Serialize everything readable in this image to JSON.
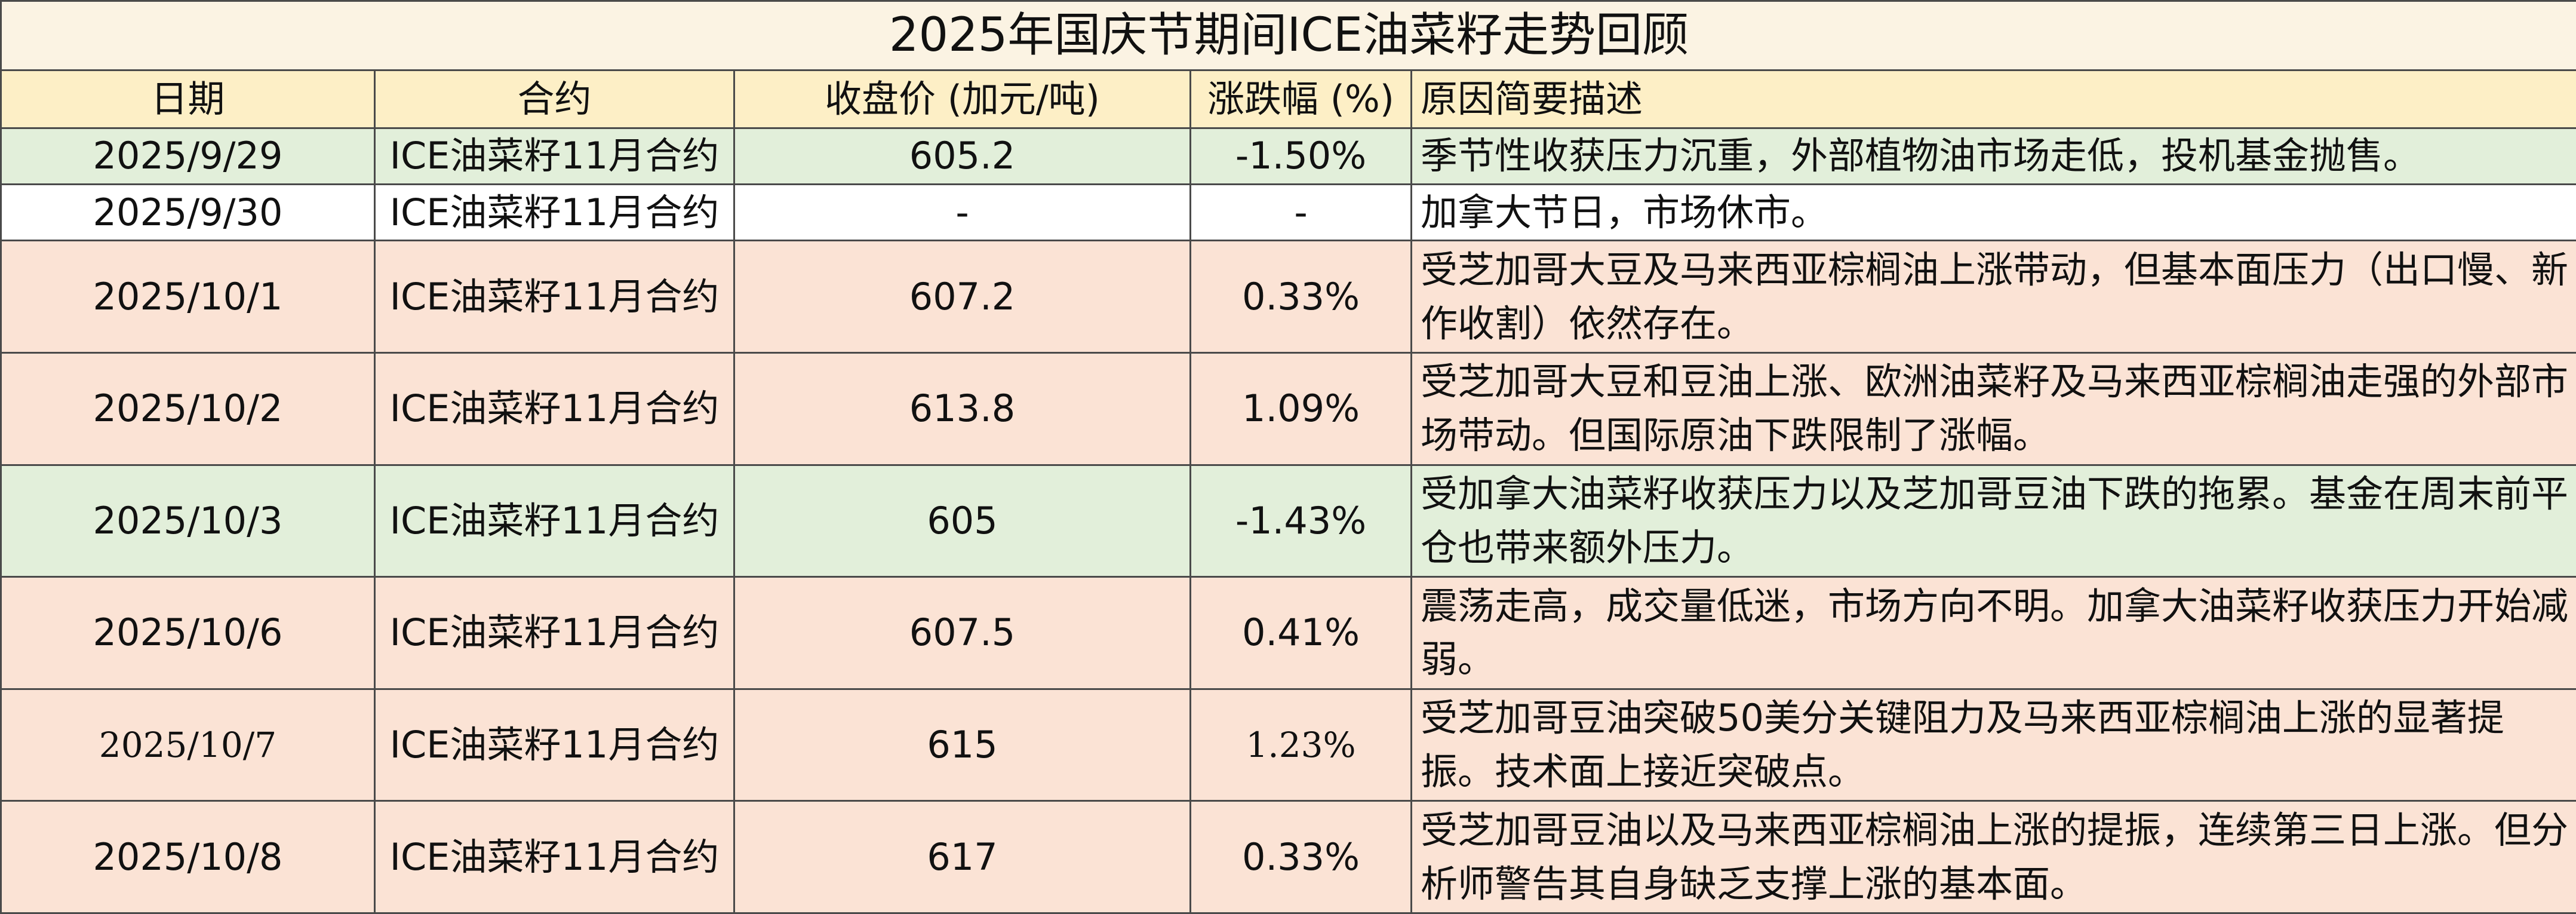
{
  "title": "2025年国庆节期间ICE油菜籽走势回顾",
  "columns": {
    "date": "日期",
    "contract": "合约",
    "price": "收盘价 (加元/吨)",
    "change": "涨跌幅 (%)",
    "reason": "原因简要描述"
  },
  "colors": {
    "title_bg": "#fbf3e3",
    "header_bg": "#fdefc6",
    "down_row_bg": "#e2efda",
    "up_row_bg": "#fbe3d5",
    "neutral_row_bg": "#ffffff",
    "border": "#4a4a4a"
  },
  "rows": [
    {
      "date": "2025/9/29",
      "contract": "ICE油菜籽11月合约",
      "price": "605.2",
      "change": "-1.50%",
      "reason": "季节性收获压力沉重，外部植物油市场走低，投机基金抛售。"
    },
    {
      "date": "2025/9/30",
      "contract": "ICE油菜籽11月合约",
      "price": "-",
      "change": "-",
      "reason": "加拿大节日，市场休市。"
    },
    {
      "date": "2025/10/1",
      "contract": "ICE油菜籽11月合约",
      "price": "607.2",
      "change": "0.33%",
      "reason": "受芝加哥大豆及马来西亚棕榈油上涨带动，但基本面压力（出口慢、新作收割）依然存在。"
    },
    {
      "date": "2025/10/2",
      "contract": "ICE油菜籽11月合约",
      "price": "613.8",
      "change": "1.09%",
      "reason": "受芝加哥大豆和豆油上涨、欧洲油菜籽及马来西亚棕榈油走强的外部市场带动。但国际原油下跌限制了涨幅。"
    },
    {
      "date": "2025/10/3",
      "contract": "ICE油菜籽11月合约",
      "price": "605",
      "change": "-1.43%",
      "reason": "受加拿大油菜籽收获压力以及芝加哥豆油下跌的拖累。基金在周末前平仓也带来额外压力。"
    },
    {
      "date": "2025/10/6",
      "contract": "ICE油菜籽11月合约",
      "price": "607.5",
      "change": "0.41%",
      "reason": "震荡走高，成交量低迷，市场方向不明。加拿大油菜籽收获压力开始减弱。"
    },
    {
      "date": "2025/10/7",
      "contract": "ICE油菜籽11月合约",
      "price": "615",
      "change": "1.23%",
      "reason": "受芝加哥豆油突破50美分关键阻力及马来西亚棕榈油上涨的显著提振。技术面上接近突破点。"
    },
    {
      "date": "2025/10/8",
      "contract": "ICE油菜籽11月合约",
      "price": "617",
      "change": "0.33%",
      "reason": "受芝加哥豆油以及马来西亚棕榈油上涨的提振，连续第三日上涨。但分析师警告其自身缺乏支撑上涨的基本面。"
    }
  ]
}
